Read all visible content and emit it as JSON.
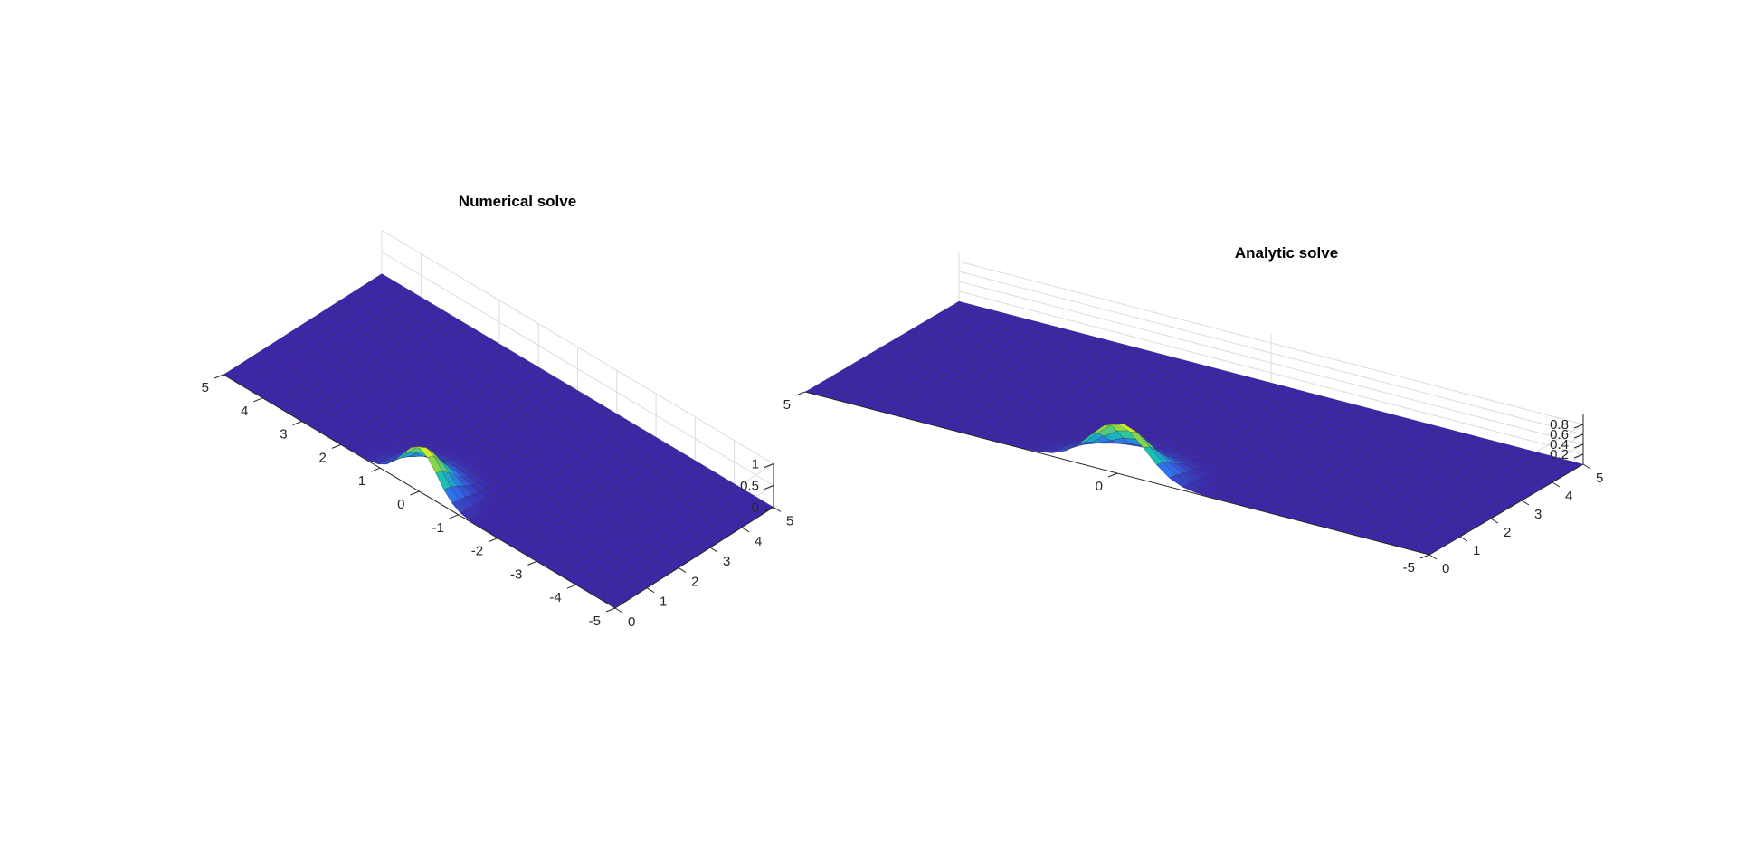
{
  "chart_data": [
    {
      "type": "surface",
      "title": "Numerical solve",
      "xlabel": "",
      "ylabel": "",
      "zlabel": "",
      "xlim": [
        -5,
        5
      ],
      "ylim": [
        0,
        5
      ],
      "zlim": [
        0,
        1
      ],
      "x_ticks": [
        "-5",
        "-4",
        "-3",
        "-2",
        "-1",
        "0",
        "1",
        "2",
        "3",
        "4",
        "5"
      ],
      "y_ticks": [
        "0",
        "1",
        "2",
        "3",
        "4",
        "5"
      ],
      "z_ticks": [
        "0",
        "0.5",
        "1"
      ],
      "grid": true,
      "colormap": [
        "#3e26a8",
        "#2f6ff0",
        "#19c1b1",
        "#8cd546",
        "#f9fb15"
      ],
      "surface": {
        "description_free": true,
        "x_range": [
          -5,
          5
        ],
        "y_range": [
          0,
          5
        ],
        "peak": {
          "x": 0,
          "y": 0,
          "z": 1
        },
        "baseline_z": 0
      }
    },
    {
      "type": "surface",
      "title": "Analytic solve",
      "xlabel": "",
      "ylabel": "",
      "zlabel": "",
      "xlim": [
        -5,
        5
      ],
      "ylim": [
        0,
        5
      ],
      "zlim": [
        0,
        1
      ],
      "x_ticks": [
        "-5",
        "0",
        "5"
      ],
      "y_ticks": [
        "0",
        "1",
        "2",
        "3",
        "4",
        "5"
      ],
      "z_ticks": [
        "0.2",
        "0.4",
        "0.6",
        "0.8"
      ],
      "grid": true,
      "colormap": [
        "#3e26a8",
        "#2f6ff0",
        "#19c1b1",
        "#8cd546",
        "#f9fb15"
      ],
      "surface": {
        "x_range": [
          -5,
          5
        ],
        "y_range": [
          0,
          5
        ],
        "peak": {
          "x": 0,
          "y": 0,
          "z": 1
        },
        "baseline_z": 0
      }
    }
  ]
}
